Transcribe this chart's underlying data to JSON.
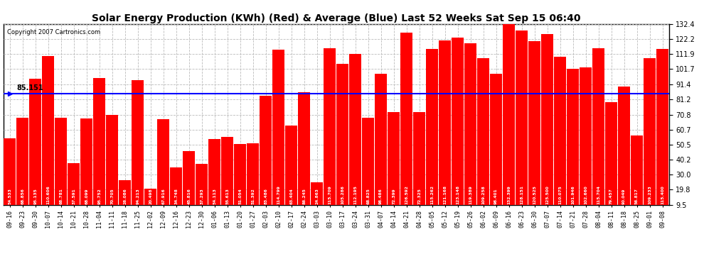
{
  "title": "Solar Energy Production (KWh) (Red) & Average (Blue) Last 52 Weeks Sat Sep 15 06:40",
  "copyright": "Copyright 2007 Cartronics.com",
  "average_line": 85.151,
  "average_label": "85.151",
  "ylim": [
    9.5,
    132.4
  ],
  "yticks": [
    9.5,
    19.8,
    30.0,
    40.2,
    50.5,
    60.7,
    70.8,
    81.2,
    91.4,
    101.7,
    111.9,
    122.2,
    132.4
  ],
  "bar_color": "#FF0000",
  "avg_line_color": "#0000FF",
  "background_color": "#FFFFFF",
  "grid_color": "#BBBBBB",
  "categories": [
    "09-16",
    "09-23",
    "09-30",
    "10-07",
    "10-14",
    "10-21",
    "10-28",
    "11-04",
    "11-11",
    "11-18",
    "11-25",
    "12-02",
    "12-09",
    "12-16",
    "12-23",
    "12-30",
    "01-06",
    "01-13",
    "01-20",
    "01-27",
    "02-03",
    "02-10",
    "02-17",
    "02-24",
    "03-03",
    "03-10",
    "03-17",
    "03-24",
    "03-31",
    "04-07",
    "04-14",
    "04-21",
    "04-28",
    "05-05",
    "05-12",
    "05-19",
    "05-26",
    "06-02",
    "06-09",
    "06-16",
    "06-23",
    "06-30",
    "07-07",
    "07-14",
    "07-21",
    "07-28",
    "08-04",
    "08-11",
    "08-18",
    "08-25",
    "09-01",
    "09-08"
  ],
  "values": [
    54.533,
    68.856,
    95.135,
    110.606,
    68.781,
    37.591,
    68.099,
    95.752,
    70.705,
    26.086,
    94.213,
    20.498,
    67.916,
    34.748,
    45.816,
    37.293,
    54.113,
    55.613,
    51.054,
    51.392,
    83.486,
    114.799,
    63.404,
    86.245,
    24.863,
    115.709,
    105.286,
    112.195,
    68.825,
    98.486,
    72.399,
    126.592,
    72.325,
    115.262,
    121.168,
    123.148,
    119.389,
    109.258,
    98.401,
    132.399,
    128.151,
    120.525,
    125.5,
    110.075,
    101.946,
    102.66,
    115.704,
    79.457,
    90.049,
    56.817,
    109.233,
    115.4
  ],
  "value_labels": [
    "54.533",
    "68.856",
    "95.135",
    "110.606",
    "68.781",
    "37.591",
    "68.099",
    "95.752",
    "70.705",
    "26.086",
    "94.213",
    "20.498",
    "67.916",
    "34.748",
    "45.816",
    "37.293",
    "54.113",
    "55.613",
    "51.054",
    "51.392",
    "83.486",
    "114.799",
    "63.404",
    "86.245",
    "24.863",
    "115.709",
    "105.286",
    "112.195",
    "68.825",
    "98.486",
    "72.399",
    "126.592",
    "72.325",
    "115.262",
    "121.168",
    "123.148",
    "119.389",
    "109.258",
    "98.401",
    "132.399",
    "128.151",
    "120.525",
    "125.500",
    "110.075",
    "101.946",
    "102.660",
    "115.704",
    "79.457",
    "90.049",
    "56.817",
    "109.233",
    "115.400"
  ]
}
